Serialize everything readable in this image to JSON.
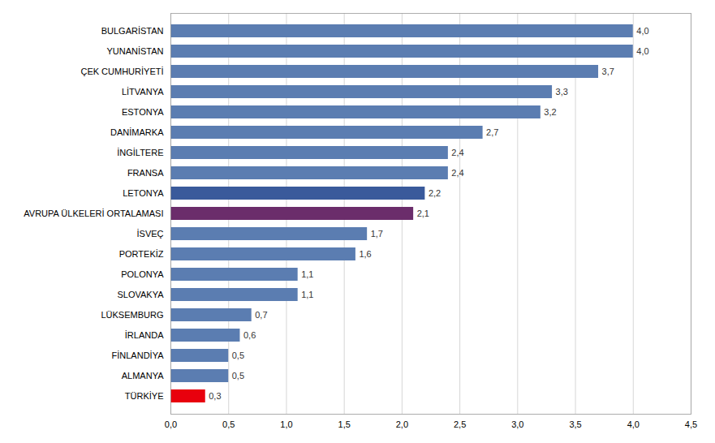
{
  "chart_data": {
    "type": "bar",
    "orientation": "horizontal",
    "categories": [
      "TÜRKİYE",
      "ALMANYA",
      "FİNLANDİYA",
      "İRLANDA",
      "LÜKSEMBURG",
      "SLOVAKYA",
      "POLONYA",
      "PORTEKİZ",
      "İSVEÇ",
      "AVRUPA ÜLKELERİ ORTALAMASI",
      "LETONYA",
      "FRANSA",
      "İNGİLTERE",
      "DANİMARKA",
      "ESTONYA",
      "LİTVANYA",
      "ÇEK CUMHURİYETİ",
      "YUNANİSTAN",
      "BULGARİSTAN"
    ],
    "values": [
      0.3,
      0.5,
      0.5,
      0.6,
      0.7,
      1.1,
      1.1,
      1.6,
      1.7,
      2.1,
      2.2,
      2.4,
      2.4,
      2.7,
      3.2,
      3.3,
      3.7,
      4.0,
      4.0
    ],
    "value_labels": [
      "0,3",
      "0,5",
      "0,5",
      "0,6",
      "0,7",
      "1,1",
      "1,1",
      "1,6",
      "1,7",
      "2,1",
      "2,2",
      "2,4",
      "2,4",
      "2,7",
      "3,2",
      "3,3",
      "3,7",
      "4,0",
      "4,0"
    ],
    "data_labels": true,
    "colors": [
      "#e8000d",
      "#5b7db1",
      "#5b7db1",
      "#5b7db1",
      "#5b7db1",
      "#5b7db1",
      "#5b7db1",
      "#5b7db1",
      "#5b7db1",
      "#6b2d6b",
      "#3a5a9b",
      "#5b7db1",
      "#5b7db1",
      "#5b7db1",
      "#5b7db1",
      "#5b7db1",
      "#5b7db1",
      "#5b7db1",
      "#5b7db1"
    ],
    "xlim": [
      0,
      4.5
    ],
    "xticks": [
      {
        "value": 0.0,
        "label": "0,0"
      },
      {
        "value": 0.5,
        "label": "0,5"
      },
      {
        "value": 1.0,
        "label": "1,0"
      },
      {
        "value": 1.5,
        "label": "1,5"
      },
      {
        "value": 2.0,
        "label": "2,0"
      },
      {
        "value": 2.5,
        "label": "2,5"
      },
      {
        "value": 3.0,
        "label": "3,0"
      },
      {
        "value": 3.5,
        "label": "3,5"
      },
      {
        "value": 4.0,
        "label": "4,0"
      },
      {
        "value": 4.5,
        "label": "4,5"
      }
    ],
    "grid": true
  }
}
